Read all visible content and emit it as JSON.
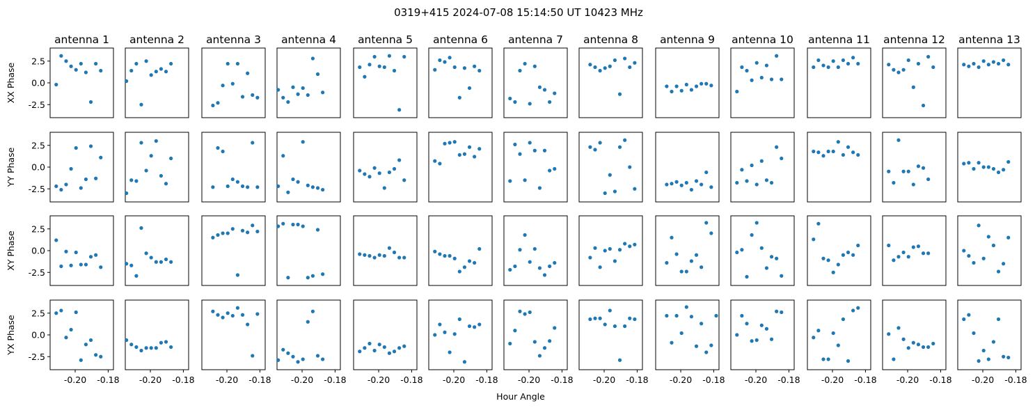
{
  "title": "0319+415  2024-07-08 15:14:50 UT  10423 MHz",
  "chart_data": {
    "type": "scatter",
    "title": "0319+415  2024-07-08 15:14:50 UT  10423 MHz",
    "xlabel": "Hour Angle",
    "xlim": [
      -0.2152,
      -0.1768
    ],
    "ylim": [
      -4.0,
      4.0
    ],
    "xticks": [
      -0.2,
      -0.18
    ],
    "xtick_labels": [
      "-0.20",
      "-0.18"
    ],
    "yticks": [
      2.5,
      0.0,
      -2.5
    ],
    "ytick_labels": [
      "2.5",
      "0.0",
      "-2.5"
    ],
    "point_color": "#1f77b4",
    "grid": false,
    "x": [
      -0.2145,
      -0.2115,
      -0.2085,
      -0.2055,
      -0.2025,
      -0.1995,
      -0.1965,
      -0.1935,
      -0.1905,
      -0.1875,
      -0.1845,
      -0.1815,
      -0.1785
    ],
    "rows": [
      "XX Phase",
      "YY Phase",
      "XY Phase",
      "YX Phase"
    ],
    "antennas": [
      {
        "name": "antenna 1",
        "XX": [
          null,
          -0.2,
          3.1,
          2.5,
          1.9,
          1.5,
          2.2,
          1.2,
          -2.2,
          2.2,
          1.4,
          null,
          null
        ],
        "YY": [
          null,
          -2.2,
          -2.6,
          -2.0,
          -0.2,
          2.2,
          -2.4,
          -1.4,
          2.4,
          -1.3,
          1.1,
          null,
          null
        ],
        "XY": [
          null,
          1.2,
          -1.8,
          -0.1,
          -1.7,
          -0.2,
          -1.6,
          -1.6,
          -0.7,
          -0.5,
          -1.9,
          null,
          null
        ],
        "YX": [
          null,
          2.5,
          2.8,
          -0.3,
          0.6,
          2.6,
          -2.9,
          -1.1,
          -0.6,
          -2.3,
          -2.5,
          null,
          null
        ]
      },
      {
        "name": "antenna 2",
        "XX": [
          0.2,
          1.4,
          2.2,
          -2.5,
          2.5,
          0.9,
          1.3,
          1.6,
          1.3,
          2.2,
          null,
          null,
          null
        ],
        "YY": [
          -3.0,
          -1.5,
          -1.6,
          2.8,
          -0.4,
          1.3,
          3.0,
          -1.0,
          -1.9,
          1.0,
          null,
          null,
          null
        ],
        "XY": [
          -1.5,
          -1.7,
          -2.9,
          2.6,
          -0.3,
          -0.8,
          -1.3,
          -1.3,
          -1.0,
          -1.3,
          null,
          null,
          null
        ],
        "YX": [
          -0.6,
          -1.1,
          -1.4,
          -1.8,
          -1.5,
          -1.5,
          -1.5,
          -0.9,
          -0.8,
          -1.4,
          null,
          null,
          null
        ]
      },
      {
        "name": "antenna 3",
        "XX": [
          null,
          null,
          -2.6,
          -2.3,
          -0.3,
          2.2,
          -0.1,
          2.2,
          -1.6,
          1.1,
          -1.4,
          -1.7,
          null
        ],
        "YY": [
          null,
          null,
          -2.3,
          2.2,
          1.8,
          -2.2,
          -1.4,
          -1.7,
          -2.2,
          -2.3,
          2.8,
          -2.3,
          null
        ],
        "XY": [
          null,
          null,
          1.5,
          1.8,
          2.0,
          2.0,
          2.5,
          -2.8,
          2.3,
          2.1,
          2.9,
          2.2,
          null
        ],
        "YX": [
          null,
          null,
          2.7,
          2.3,
          2.0,
          2.5,
          2.2,
          3.1,
          2.3,
          1.2,
          -2.4,
          2.4,
          null
        ]
      },
      {
        "name": "antenna 4",
        "XX": [
          -0.8,
          -1.7,
          -2.2,
          -0.5,
          -1.3,
          -0.6,
          -1.4,
          2.8,
          1.0,
          -1.1,
          null,
          null,
          null
        ],
        "YY": [
          -2.2,
          1.3,
          -2.9,
          -1.4,
          -1.7,
          2.9,
          -2.1,
          -2.3,
          -2.4,
          -2.6,
          null,
          null,
          null
        ],
        "XY": [
          2.8,
          3.1,
          -3.1,
          3.0,
          3.0,
          2.8,
          -3.1,
          -2.9,
          2.4,
          -2.7,
          null,
          null,
          null
        ],
        "YX": [
          -2.9,
          -1.7,
          -2.1,
          -2.5,
          -3.1,
          -2.8,
          1.5,
          2.7,
          -2.4,
          -2.8,
          null,
          null,
          null
        ]
      },
      {
        "name": "antenna 5",
        "XX": [
          null,
          1.8,
          0.7,
          2.1,
          3.0,
          1.9,
          1.8,
          3.1,
          1.4,
          -3.1,
          3.0,
          null,
          null
        ],
        "YY": [
          null,
          -0.4,
          -0.8,
          -1.1,
          -0.1,
          -0.7,
          -2.4,
          -0.6,
          -0.2,
          0.8,
          -1.5,
          null,
          null
        ],
        "XY": [
          null,
          -0.4,
          -0.5,
          -0.6,
          -0.8,
          -0.5,
          -0.6,
          0.3,
          -0.2,
          -0.8,
          -0.8,
          null,
          null
        ],
        "YX": [
          null,
          -1.9,
          -1.5,
          -1.0,
          -1.8,
          -1.1,
          -1.4,
          -2.1,
          -1.9,
          -1.5,
          -1.3,
          null,
          null
        ]
      },
      {
        "name": "antenna 6",
        "XX": [
          null,
          1.5,
          2.6,
          2.4,
          2.9,
          1.8,
          -1.7,
          1.7,
          -0.6,
          1.9,
          1.4,
          null,
          null
        ],
        "YY": [
          null,
          0.7,
          0.4,
          2.7,
          2.8,
          2.9,
          1.4,
          1.5,
          2.3,
          1.2,
          2.1,
          null,
          null
        ],
        "XY": [
          null,
          -0.1,
          -0.4,
          -0.6,
          -0.6,
          -0.9,
          -2.4,
          -1.9,
          -1.2,
          -1.4,
          0.2,
          null,
          null
        ],
        "YX": [
          null,
          0.0,
          1.2,
          0.3,
          -2.0,
          0.1,
          1.8,
          -3.1,
          1.0,
          0.9,
          1.2,
          null,
          null
        ]
      },
      {
        "name": "antenna 7",
        "XX": [
          null,
          -1.8,
          -2.2,
          1.4,
          2.2,
          -2.4,
          1.9,
          -0.5,
          -0.8,
          -2.2,
          -1.2,
          null,
          null
        ],
        "YY": [
          null,
          -1.6,
          2.6,
          1.5,
          -1.5,
          2.8,
          1.9,
          -2.4,
          1.9,
          -0.4,
          -0.2,
          null,
          null
        ],
        "XY": [
          null,
          -2.2,
          -1.8,
          0.1,
          1.8,
          -1.3,
          0.2,
          -2.0,
          -2.8,
          -1.8,
          -1.4,
          null,
          null
        ],
        "YX": [
          null,
          -1.0,
          0.5,
          2.7,
          2.4,
          2.6,
          -0.8,
          -2.4,
          -1.5,
          -0.7,
          0.8,
          null,
          null
        ]
      },
      {
        "name": "antenna 8",
        "XX": [
          null,
          null,
          2.1,
          1.8,
          1.4,
          1.7,
          1.9,
          2.6,
          -1.3,
          2.8,
          1.8,
          2.3,
          null
        ],
        "YY": [
          null,
          null,
          2.3,
          2.0,
          2.8,
          -3.0,
          -0.9,
          -2.8,
          2.3,
          3.1,
          0.0,
          -2.5,
          null
        ],
        "XY": [
          null,
          null,
          -0.8,
          0.3,
          -1.9,
          0.0,
          0.2,
          -1.2,
          0.1,
          0.8,
          0.5,
          0.7,
          null
        ],
        "YX": [
          null,
          null,
          1.8,
          1.9,
          1.9,
          1.2,
          2.8,
          1.0,
          -2.9,
          1.0,
          1.9,
          1.8,
          null
        ]
      },
      {
        "name": "antenna 9",
        "XX": [
          null,
          null,
          -0.4,
          -1.0,
          -0.4,
          -0.9,
          -0.2,
          -0.8,
          -0.4,
          -0.1,
          -0.1,
          -0.3,
          null
        ],
        "YY": [
          null,
          null,
          -2.0,
          -1.9,
          -1.7,
          -2.1,
          -1.8,
          -2.6,
          -1.6,
          -2.0,
          -0.6,
          -2.3,
          null
        ],
        "XY": [
          null,
          null,
          -1.4,
          1.5,
          -0.4,
          -2.4,
          -2.4,
          -1.2,
          -0.5,
          -1.9,
          3.2,
          2.0,
          null
        ],
        "YX": [
          null,
          null,
          2.2,
          -0.9,
          2.2,
          0.2,
          3.2,
          2.1,
          -1.3,
          1.3,
          -2.0,
          -1.2,
          2.2
        ]
      },
      {
        "name": "antenna 10",
        "XX": [
          null,
          -1.0,
          1.8,
          1.4,
          0.3,
          2.3,
          0.6,
          2.0,
          0.4,
          3.1,
          0.4,
          null,
          null
        ],
        "YY": [
          null,
          -1.8,
          -0.3,
          -1.6,
          0.2,
          -2.0,
          0.7,
          -1.5,
          -1.8,
          2.3,
          1.0,
          null,
          null
        ],
        "XY": [
          null,
          -0.2,
          0.1,
          -3.0,
          1.8,
          3.2,
          0.3,
          -2.0,
          -0.7,
          -0.9,
          -2.9,
          null,
          null
        ],
        "YX": [
          null,
          0.0,
          2.2,
          1.3,
          -0.7,
          -0.6,
          1.1,
          0.7,
          -0.5,
          2.7,
          2.6,
          null,
          null
        ]
      },
      {
        "name": "antenna 11",
        "XX": [
          null,
          1.8,
          2.6,
          2.0,
          1.8,
          2.5,
          1.8,
          2.6,
          2.2,
          2.9,
          2.2,
          null,
          null
        ],
        "YY": [
          null,
          1.8,
          1.7,
          1.3,
          1.8,
          1.8,
          2.9,
          1.4,
          2.3,
          1.7,
          1.4,
          null,
          null
        ],
        "XY": [
          null,
          1.3,
          3.1,
          -0.9,
          -1.1,
          -2.5,
          -1.6,
          -0.5,
          -0.2,
          -0.5,
          0.6,
          null,
          null
        ],
        "YX": [
          null,
          -0.3,
          0.5,
          -2.8,
          -2.8,
          0.2,
          -1.2,
          1.8,
          -3.0,
          2.8,
          3.1,
          null,
          null
        ]
      },
      {
        "name": "antenna 12",
        "XX": [
          null,
          2.1,
          1.5,
          1.2,
          1.5,
          2.6,
          -0.5,
          2.2,
          -2.6,
          3.0,
          1.8,
          null,
          null
        ],
        "YY": [
          null,
          -0.5,
          -1.8,
          3.1,
          -0.5,
          -0.5,
          -2.0,
          0.1,
          -0.1,
          -1.4,
          null,
          null,
          null
        ],
        "XY": [
          null,
          0.6,
          -1.1,
          -0.7,
          -0.2,
          -0.7,
          0.4,
          0.5,
          -0.3,
          -0.3,
          null,
          null,
          null
        ],
        "YX": [
          null,
          0.1,
          -2.8,
          0.8,
          -0.5,
          -1.5,
          -0.9,
          -1.1,
          -1.4,
          -1.4,
          -1.0,
          null,
          null
        ]
      },
      {
        "name": "antenna 13",
        "XX": [
          null,
          2.1,
          1.9,
          2.2,
          1.8,
          2.5,
          2.1,
          2.4,
          2.2,
          2.6,
          2.1,
          null,
          null
        ],
        "YY": [
          null,
          0.4,
          0.5,
          -0.2,
          0.5,
          0.0,
          0.0,
          -0.2,
          -0.6,
          -0.3,
          0.6,
          null,
          null
        ],
        "XY": [
          null,
          0.0,
          -0.6,
          -1.4,
          2.9,
          -0.9,
          1.6,
          0.6,
          -2.4,
          -1.5,
          1.5,
          null,
          null
        ],
        "YX": [
          null,
          1.8,
          2.3,
          0.2,
          -3.0,
          -1.8,
          -2.8,
          -0.8,
          1.8,
          -2.5,
          -2.6,
          null,
          null
        ]
      }
    ]
  }
}
